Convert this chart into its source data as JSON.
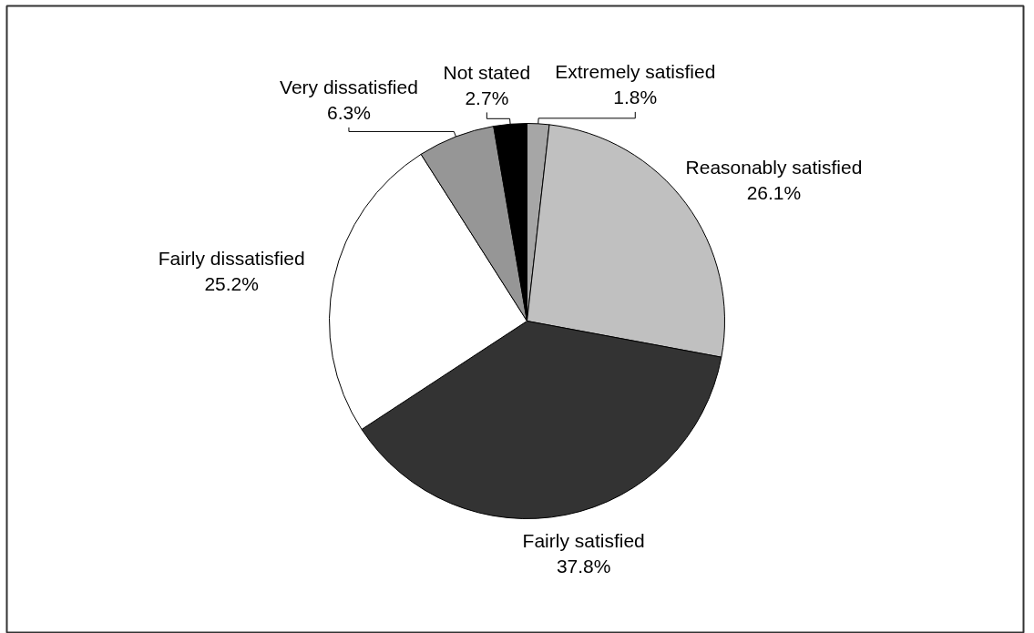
{
  "chart_data": {
    "type": "pie",
    "categories": [
      "Extremely satisfied",
      "Reasonably satisfied",
      "Fairly satisfied",
      "Fairly dissatisfied",
      "Very dissatisfied",
      "Not stated"
    ],
    "values": [
      1.8,
      26.1,
      37.8,
      25.2,
      6.3,
      2.7
    ],
    "value_labels": [
      "1.8%",
      "26.1%",
      "37.8%",
      "25.2%",
      "6.3%",
      "2.7%"
    ],
    "colors": [
      "#a6a6a6",
      "#c0c0c0",
      "#333333",
      "#ffffff",
      "#969696",
      "#000000"
    ]
  }
}
